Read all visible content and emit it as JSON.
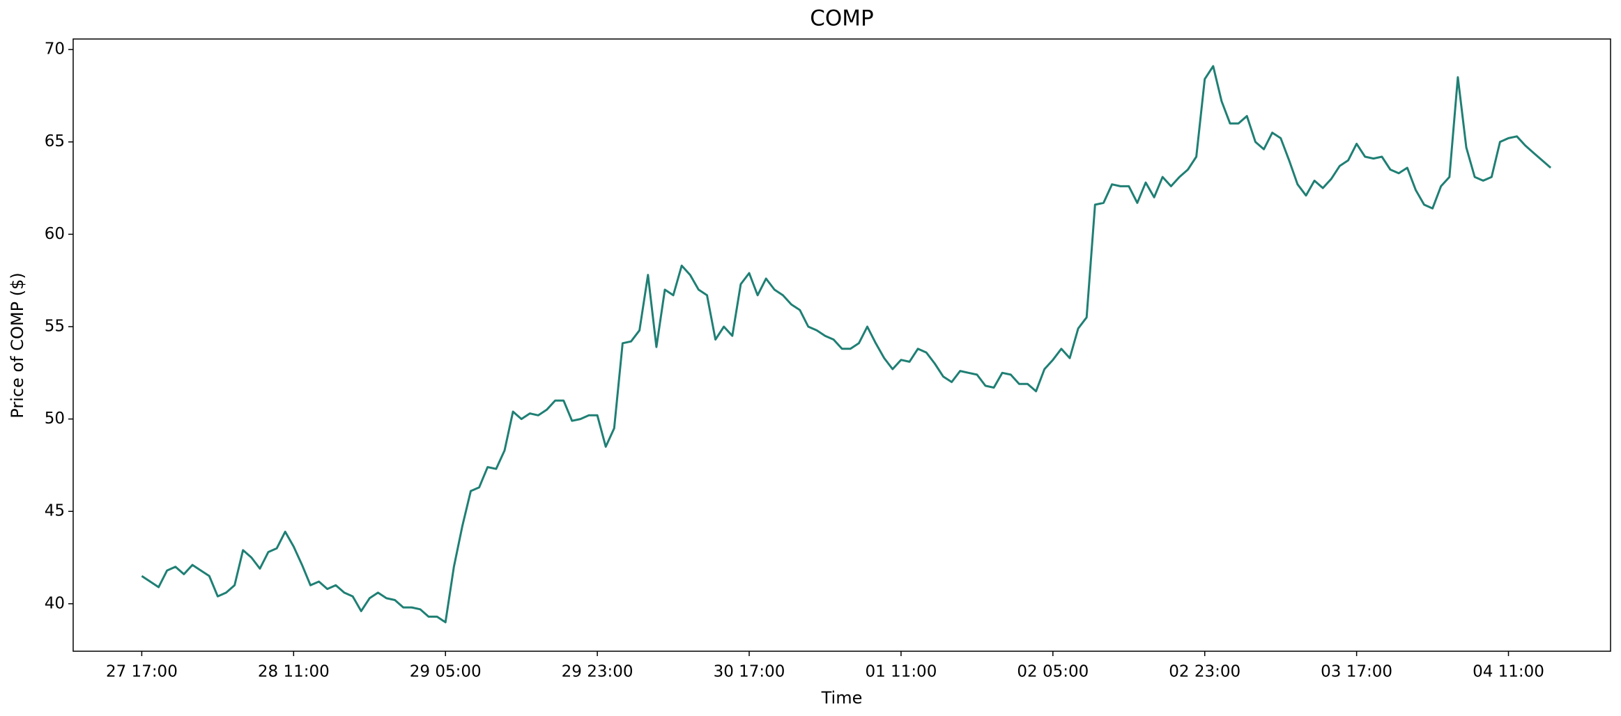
{
  "chart_data": {
    "type": "line",
    "title": "COMP",
    "x_label": "Time",
    "y_label": "Price of COMP ($)",
    "x": [
      "27 17:00",
      null,
      null,
      null,
      null,
      null,
      null,
      null,
      null,
      null,
      null,
      null,
      null,
      null,
      null,
      null,
      null,
      null,
      "28 11:00",
      null,
      null,
      null,
      null,
      null,
      null,
      null,
      null,
      null,
      null,
      null,
      null,
      null,
      null,
      null,
      null,
      null,
      "29 05:00",
      null,
      null,
      null,
      null,
      null,
      null,
      null,
      null,
      null,
      null,
      null,
      null,
      null,
      null,
      null,
      null,
      null,
      "29 23:00",
      null,
      null,
      null,
      null,
      null,
      null,
      null,
      null,
      null,
      null,
      null,
      null,
      null,
      null,
      null,
      null,
      null,
      "30 17:00",
      null,
      null,
      null,
      null,
      null,
      null,
      null,
      null,
      null,
      null,
      null,
      null,
      null,
      null,
      null,
      null,
      null,
      "01 11:00",
      null,
      null,
      null,
      null,
      null,
      null,
      null,
      null,
      null,
      null,
      null,
      null,
      null,
      null,
      null,
      null,
      null,
      "02 05:00",
      null,
      null,
      null,
      null,
      null,
      null,
      null,
      null,
      null,
      null,
      null,
      null,
      null,
      null,
      null,
      null,
      null,
      "02 23:00",
      null,
      null,
      null,
      null,
      null,
      null,
      null,
      null,
      null,
      null,
      null,
      null,
      null,
      null,
      null,
      null,
      null,
      "03 17:00",
      null,
      null,
      null,
      null,
      null,
      null,
      null,
      null,
      null,
      null,
      null,
      null,
      null,
      null,
      null,
      null,
      null,
      "04 11:00",
      null,
      null,
      null,
      null,
      null
    ],
    "series": [
      {
        "name": "COMP",
        "color": "#1f7f74",
        "values": [
          41.5,
          41.2,
          40.9,
          41.8,
          42.0,
          41.6,
          42.1,
          41.8,
          41.5,
          40.4,
          40.6,
          41.0,
          42.9,
          42.5,
          41.9,
          42.8,
          43.0,
          43.9,
          43.1,
          42.1,
          41.0,
          41.2,
          40.8,
          41.0,
          40.6,
          40.4,
          39.6,
          40.3,
          40.6,
          40.3,
          40.2,
          39.8,
          39.8,
          39.7,
          39.3,
          39.3,
          39.0,
          42.0,
          44.2,
          46.1,
          46.3,
          47.4,
          47.3,
          48.3,
          50.4,
          50.0,
          50.3,
          50.2,
          50.5,
          51.0,
          51.0,
          49.9,
          50.0,
          50.2,
          50.2,
          48.5,
          49.5,
          54.1,
          54.2,
          54.8,
          57.8,
          53.9,
          57.0,
          56.7,
          58.3,
          57.8,
          57.0,
          56.7,
          54.3,
          55.0,
          54.5,
          57.3,
          57.9,
          56.7,
          57.6,
          57.0,
          56.7,
          56.2,
          55.9,
          55.0,
          54.8,
          54.5,
          54.3,
          53.8,
          53.8,
          54.1,
          55.0,
          54.1,
          53.3,
          52.7,
          53.2,
          53.1,
          53.8,
          53.6,
          53.0,
          52.3,
          52.0,
          52.6,
          52.5,
          52.4,
          51.8,
          51.7,
          52.5,
          52.4,
          51.9,
          51.9,
          51.5,
          52.7,
          53.2,
          53.8,
          53.3,
          54.9,
          55.5,
          61.6,
          61.7,
          62.7,
          62.6,
          62.6,
          61.7,
          62.8,
          62.0,
          63.1,
          62.6,
          63.1,
          63.5,
          64.2,
          68.4,
          69.1,
          67.2,
          66.0,
          66.0,
          66.4,
          65.0,
          64.6,
          65.5,
          65.2,
          64.0,
          62.7,
          62.1,
          62.9,
          62.5,
          63.0,
          63.7,
          64.0,
          64.9,
          64.2,
          64.1,
          64.2,
          63.5,
          63.3,
          63.6,
          62.4,
          61.6,
          61.4,
          62.6,
          63.1,
          68.5,
          64.7,
          63.1,
          62.9,
          63.1,
          65.0,
          65.2,
          65.3,
          64.8,
          64.4,
          64.0,
          63.6
        ]
      }
    ],
    "ylim": [
      37.43,
      70.57
    ],
    "yticks": [
      40,
      45,
      50,
      55,
      60,
      65,
      70
    ],
    "grid": false
  }
}
